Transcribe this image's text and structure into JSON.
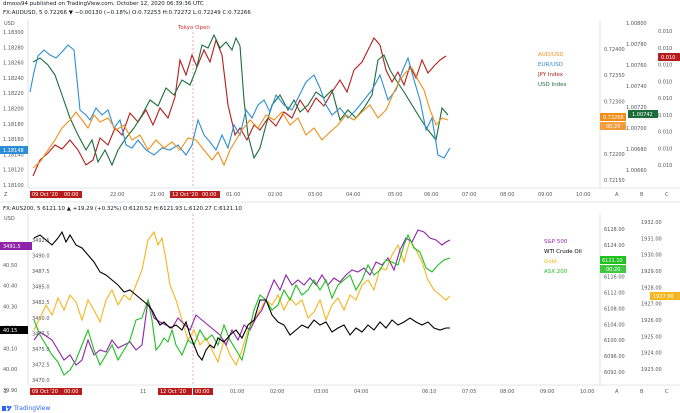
{
  "header": {
    "published": "dmoss94 published on TradingView.com, October 12, 2020 06:39:36 UTC",
    "symbol_line": "FX:AUDUSD, 5 0.72266 ▼ −0.00130 (−0.18%) O:0.72253 H:0.72272 L:0.72249 C:0.72266"
  },
  "panel_top": {
    "unit": "USD",
    "annotation": "Tokyo Open",
    "left_ticks": [
      "1.18300",
      "1.18280",
      "1.18260",
      "1.18240",
      "1.18220",
      "1.18200",
      "1.18180",
      "1.18160",
      "1.18140",
      "1.18120",
      "1.18100"
    ],
    "mid_ticks": [
      "0.72400",
      "0.72350",
      "0.72300",
      "0.72250",
      "0.72200",
      "0.72150"
    ],
    "right_ticks_a": [
      "1.00800",
      "1.00780",
      "1.00760",
      "1.00740",
      "1.00720",
      "1.00700",
      "1.00680",
      "1.00660"
    ],
    "right_ticks_b": [
      "0.010",
      "0.010",
      "0.010",
      "0.010",
      "0.010",
      "0.010",
      "0.010",
      "0.010",
      "0.010"
    ],
    "time_labels": [
      "09 Oct '20",
      "00:00",
      "22:00",
      "21:00",
      "12 Oct '20",
      "00:00",
      "01:00",
      "02:00",
      "03:00",
      "04:00",
      "05:00",
      "06:00",
      "07:00",
      "08:00",
      "09:00",
      "10:00"
    ],
    "legend": [
      {
        "label": "AUD/USD",
        "color": "#f28f1c"
      },
      {
        "label": "EUR/USD",
        "color": "#2c8ed6"
      },
      {
        "label": "JPY Index",
        "color": "#b71c1c"
      },
      {
        "label": "USD Index",
        "color": "#1b6e3a"
      }
    ],
    "badges": {
      "eurusd": "1.18148",
      "audusd": "0.72266",
      "countdown": "00:20",
      "usd_index": "1.00742",
      "jpy": "0.010"
    },
    "axis_letters": [
      "Z",
      "A",
      "B",
      "C"
    ]
  },
  "panel_bottom": {
    "symbol_line": "FX:AUS200, 5 6121.10 ▲ +19.29 (+0.32%) O:6120.52 H:6121.93 L:6120.27 C:6121.10",
    "unit": "USD",
    "left_ticks": [
      "40.60",
      "40.50",
      "40.40",
      "40.30",
      "40.20",
      "40.10",
      "40.00",
      "39.90"
    ],
    "mid_ticks": [
      "3492.5",
      "3490.0",
      "3487.5",
      "3485.0",
      "3482.5",
      "3480.0",
      "3477.5",
      "3475.0",
      "3472.5",
      "3470.0"
    ],
    "right_ticks_a": [
      "6128.00",
      "6124.00",
      "6120.00",
      "6116.00",
      "6112.00",
      "6108.00",
      "6104.00",
      "6100.00",
      "6096.00",
      "6092.00"
    ],
    "right_ticks_b": [
      "1932.00",
      "1931.00",
      "1930.00",
      "1929.00",
      "1928.00",
      "1927.00",
      "1926.00",
      "1925.00",
      "1924.00",
      "1923.00"
    ],
    "time_labels": [
      "09 Oct '20",
      "00:00",
      "11",
      "12 Oct '20",
      "00:00",
      "01:00",
      "02:00",
      "03:00",
      "04:00",
      "06:10",
      "07:05",
      "08:00",
      "09:00",
      "10:00"
    ],
    "legend": [
      {
        "label": "S&P 500",
        "color": "#8e24aa"
      },
      {
        "label": "WTI Crude Oil",
        "color": "#000000"
      },
      {
        "label": "Gold",
        "color": "#f5b51d"
      },
      {
        "label": "ASX 200",
        "color": "#1fbf1f"
      }
    ],
    "badges": {
      "sp500": "3491.5",
      "wti": "40.15",
      "asx": "6121.10",
      "asx_countdown": "00:20",
      "gold": "1927.90"
    },
    "axis_letters": [
      "Z",
      "A",
      "B",
      "C"
    ]
  },
  "footer": {
    "brand": "TradingView"
  }
}
